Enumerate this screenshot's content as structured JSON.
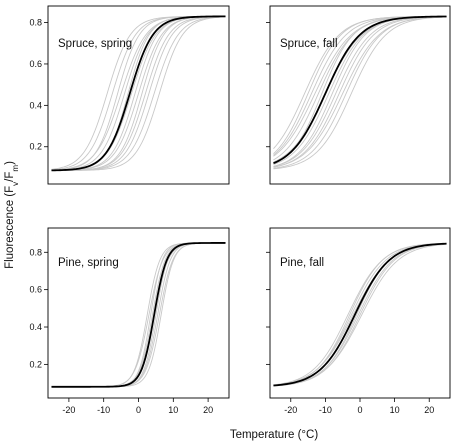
{
  "chart_data": [
    {
      "type": "line",
      "panel_label": "Spruce, spring",
      "ylabel_main": "Fluorescence (",
      "ylabel_fv_base": "F",
      "ylabel_fv_sub": "v",
      "ylabel_slash": "/",
      "ylabel_fm_base": "F",
      "ylabel_fm_sub": "m",
      "ylabel_close": ")",
      "xlabel": "Temperature (°C)",
      "xlim": [
        -26,
        26
      ],
      "ylim": [
        0.02,
        0.88
      ],
      "x_ticks": [
        -20,
        -10,
        0,
        10,
        20
      ],
      "y_ticks": [
        0.2,
        0.4,
        0.6,
        0.8
      ],
      "y_tick_labels": [
        "0.2",
        "0.4",
        "0.6",
        "0.8"
      ],
      "mean_curve": {
        "low": 0.085,
        "high": 0.83,
        "midpoint": -2.5,
        "slope": 0.3
      },
      "individual_curves": [
        {
          "midpoint": -9,
          "slope": 0.3
        },
        {
          "midpoint": -7.5,
          "slope": 0.3
        },
        {
          "midpoint": -6,
          "slope": 0.32
        },
        {
          "midpoint": -5,
          "slope": 0.28
        },
        {
          "midpoint": -4,
          "slope": 0.3
        },
        {
          "midpoint": -3,
          "slope": 0.33
        },
        {
          "midpoint": -2,
          "slope": 0.29
        },
        {
          "midpoint": -1,
          "slope": 0.31
        },
        {
          "midpoint": 0,
          "slope": 0.3
        },
        {
          "midpoint": 1,
          "slope": 0.32
        },
        {
          "midpoint": 2,
          "slope": 0.3
        },
        {
          "midpoint": 3,
          "slope": 0.3
        },
        {
          "midpoint": 4.5,
          "slope": 0.29
        },
        {
          "midpoint": 6,
          "slope": 0.3
        }
      ]
    },
    {
      "type": "line",
      "panel_label": "Spruce, fall",
      "xlim": [
        -26,
        26
      ],
      "ylim": [
        0.02,
        0.88
      ],
      "x_ticks": [
        -20,
        -10,
        0,
        10,
        20
      ],
      "y_ticks": [
        0.2,
        0.4,
        0.6,
        0.8
      ],
      "mean_curve": {
        "low": 0.085,
        "high": 0.83,
        "midpoint": -10,
        "slope": 0.2
      },
      "individual_curves": [
        {
          "midpoint": -16,
          "slope": 0.2
        },
        {
          "midpoint": -15,
          "slope": 0.21
        },
        {
          "midpoint": -14,
          "slope": 0.2
        },
        {
          "midpoint": -13,
          "slope": 0.19
        },
        {
          "midpoint": -12,
          "slope": 0.2
        },
        {
          "midpoint": -11,
          "slope": 0.22
        },
        {
          "midpoint": -10,
          "slope": 0.19
        },
        {
          "midpoint": -9,
          "slope": 0.2
        },
        {
          "midpoint": -8,
          "slope": 0.21
        },
        {
          "midpoint": -7,
          "slope": 0.2
        },
        {
          "midpoint": -6,
          "slope": 0.2
        },
        {
          "midpoint": -5,
          "slope": 0.19
        },
        {
          "midpoint": -4,
          "slope": 0.2
        },
        {
          "midpoint": -2.5,
          "slope": 0.2
        }
      ]
    },
    {
      "type": "line",
      "panel_label": "Pine, spring",
      "xlim": [
        -26,
        26
      ],
      "ylim": [
        0.02,
        0.93
      ],
      "x_ticks": [
        -20,
        -10,
        0,
        10,
        20
      ],
      "x_tick_labels": [
        "-20",
        "-10",
        "0",
        "10",
        "20"
      ],
      "y_ticks": [
        0.2,
        0.4,
        0.6,
        0.8
      ],
      "y_tick_labels": [
        "0.2",
        "0.4",
        "0.6",
        "0.8"
      ],
      "mean_curve": {
        "low": 0.08,
        "high": 0.85,
        "midpoint": 4.5,
        "slope": 0.55
      },
      "individual_curves": [
        {
          "midpoint": 2.5,
          "slope": 0.55
        },
        {
          "midpoint": 3,
          "slope": 0.5
        },
        {
          "midpoint": 3.5,
          "slope": 0.6
        },
        {
          "midpoint": 4,
          "slope": 0.55
        },
        {
          "midpoint": 4.5,
          "slope": 0.5
        },
        {
          "midpoint": 5,
          "slope": 0.58
        },
        {
          "midpoint": 5.5,
          "slope": 0.55
        },
        {
          "midpoint": 6,
          "slope": 0.52
        },
        {
          "midpoint": 6.5,
          "slope": 0.56
        }
      ]
    },
    {
      "type": "line",
      "panel_label": "Pine, fall",
      "xlim": [
        -26,
        26
      ],
      "ylim": [
        0.02,
        0.93
      ],
      "x_ticks": [
        -20,
        -10,
        0,
        10,
        20
      ],
      "x_tick_labels": [
        "-20",
        "-10",
        "0",
        "10",
        "20"
      ],
      "y_ticks": [
        0.2,
        0.4,
        0.6,
        0.8
      ],
      "mean_curve": {
        "low": 0.08,
        "high": 0.85,
        "midpoint": -1.5,
        "slope": 0.2
      },
      "individual_curves": [
        {
          "midpoint": -3.5,
          "slope": 0.2
        },
        {
          "midpoint": -3,
          "slope": 0.21
        },
        {
          "midpoint": -2.5,
          "slope": 0.2
        },
        {
          "midpoint": -2,
          "slope": 0.19
        },
        {
          "midpoint": -1.5,
          "slope": 0.2
        },
        {
          "midpoint": -1,
          "slope": 0.21
        },
        {
          "midpoint": -0.5,
          "slope": 0.2
        },
        {
          "midpoint": 0,
          "slope": 0.2
        },
        {
          "midpoint": 0.5,
          "slope": 0.19
        }
      ]
    }
  ]
}
